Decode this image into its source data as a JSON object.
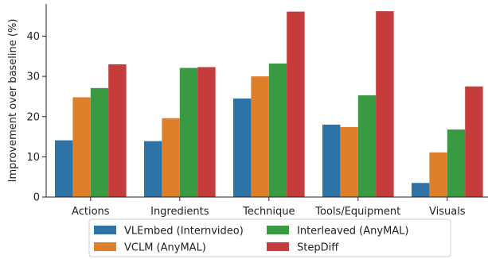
{
  "chart_data": {
    "type": "bar",
    "categories": [
      "Actions",
      "Ingredients",
      "Technique",
      "Tools/Equipment",
      "Visuals"
    ],
    "series": [
      {
        "name": "VLEmbed (Internvideo)",
        "color": "#2f73a6",
        "values": [
          14.1,
          13.9,
          24.5,
          18.0,
          3.5
        ]
      },
      {
        "name": "VCLM (AnyMAL)",
        "color": "#e07f29",
        "values": [
          24.8,
          19.6,
          30.0,
          17.4,
          11.1
        ]
      },
      {
        "name": "Interleaved (AnyMAL)",
        "color": "#3a9a41",
        "values": [
          27.1,
          32.1,
          33.2,
          25.3,
          16.8
        ]
      },
      {
        "name": "StepDiff",
        "color": "#c53c3c",
        "values": [
          33.0,
          32.3,
          46.1,
          46.2,
          27.5
        ]
      }
    ],
    "title": "",
    "xlabel": "",
    "ylabel": "Improvement over baseline (%)",
    "ylim": [
      0,
      48
    ],
    "yticks": [
      0,
      10,
      20,
      30,
      40
    ],
    "grid": false,
    "legend_position": "bottom-center"
  }
}
